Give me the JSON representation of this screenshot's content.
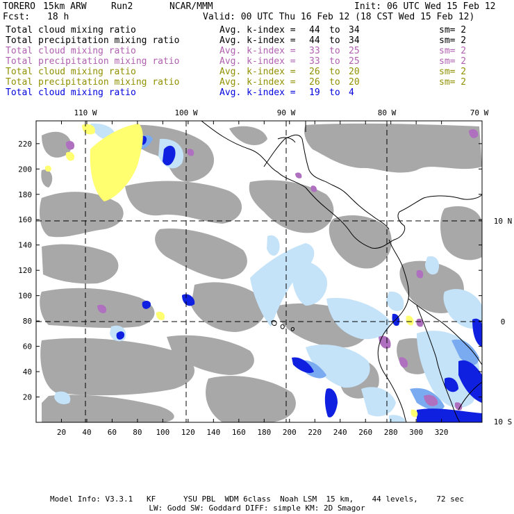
{
  "header": {
    "model": "TORERO",
    "resolution": "15km ARW",
    "run": "Run2",
    "org": "NCAR/MMM",
    "init": "Init: 06 UTC Wed 15 Feb 12",
    "fcst_label": "Fcst:",
    "fcst_value": "18 h",
    "valid": "Valid: 00 UTC Thu 16 Feb 12 (18 CST Wed 15 Feb 12)"
  },
  "legend": [
    {
      "field": "Total cloud mixing ratio",
      "kindex": "Avg. k-index =",
      "from": "44",
      "to_label": "to",
      "to": "34",
      "sm": "sm= 2",
      "color": "#000000"
    },
    {
      "field": "Total precipitation mixing ratio",
      "kindex": "Avg. k-index =",
      "from": "44",
      "to_label": "to",
      "to": "34",
      "sm": "sm= 2",
      "color": "#000000"
    },
    {
      "field": "Total cloud mixing ratio",
      "kindex": "Avg. k-index =",
      "from": "33",
      "to_label": "to",
      "to": "25",
      "sm": "sm= 2",
      "color": "#b060b0"
    },
    {
      "field": "Total precipitation mixing ratio",
      "kindex": "Avg. k-index =",
      "from": "33",
      "to_label": "to",
      "to": "25",
      "sm": "sm= 2",
      "color": "#b060b0"
    },
    {
      "field": "Total cloud mixing ratio",
      "kindex": "Avg. k-index =",
      "from": "26",
      "to_label": "to",
      "to": "20",
      "sm": "sm= 2",
      "color": "#909000"
    },
    {
      "field": "Total precipitation mixing ratio",
      "kindex": "Avg. k-index =",
      "from": "26",
      "to_label": "to",
      "to": "20",
      "sm": "sm= 2",
      "color": "#909000"
    },
    {
      "field": "Total cloud mixing ratio",
      "kindex": "Avg. k-index =",
      "from": "19",
      "to_label": "to",
      "to": "4",
      "sm": "",
      "color": "#0000dd"
    }
  ],
  "map": {
    "top_lon_labels": [
      "110 W",
      "100 W",
      "90 W",
      "80 W",
      "70 W"
    ],
    "right_lat_labels": [
      "10 N",
      "0",
      "10 S"
    ],
    "left_ticks": [
      "220",
      "200",
      "180",
      "160",
      "140",
      "120",
      "100",
      "80",
      "60",
      "40",
      "20"
    ],
    "bottom_ticks": [
      "20",
      "40",
      "60",
      "80",
      "100",
      "120",
      "140",
      "160",
      "180",
      "200",
      "220",
      "240",
      "260",
      "280",
      "300",
      "320"
    ],
    "colors": {
      "gray_cloud": "#a8a8a8",
      "light_blue": "#c4e2f8",
      "mid_blue": "#7aaaf0",
      "dark_blue": "#1020e0",
      "yellow": "#ffff70",
      "purple": "#b070c0"
    }
  },
  "footer": {
    "line1": "Model Info: V3.3.1   KF      YSU PBL  WDM 6class  Noah LSM  15 km,    44 levels,    72 sec",
    "line2": "LW: Godd SW: Goddard DIFF: simple KM: 2D Smagor"
  }
}
